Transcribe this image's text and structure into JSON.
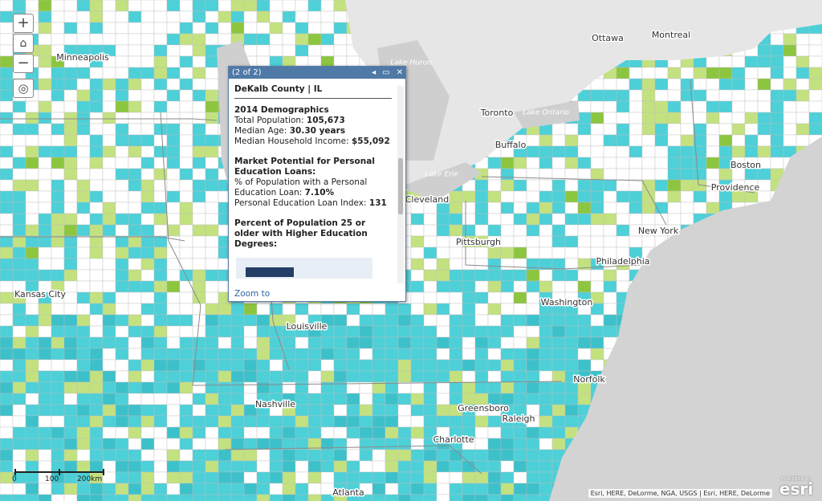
{
  "map_controls": {
    "zoom_in": "+",
    "zoom_out": "−"
  },
  "place_labels": [
    "Minneapolis",
    "Ottawa",
    "Montreal",
    "Toronto",
    "Buffalo",
    "Boston",
    "Providence",
    "New York",
    "Philadelphia",
    "Pittsburgh",
    "Cleveland",
    "Washington",
    "Kansas City",
    "Louisville",
    "Norfolk",
    "Nashville",
    "Greensboro",
    "Raleigh",
    "Charlotte",
    "Atlanta"
  ],
  "water_labels": [
    "Lake Huron",
    "Lake Ontario",
    "Lake Erie"
  ],
  "popup": {
    "counter": "(2 of 2)",
    "title": "DeKalb County | IL",
    "demographics": {
      "heading": "2014 Demographics",
      "rows": [
        {
          "label": "Total Population:",
          "value": "105,673"
        },
        {
          "label": "Median Age:",
          "value": "30.30 years"
        },
        {
          "label": "Median Household Income:",
          "value": "$55,092"
        }
      ]
    },
    "market": {
      "heading": "Market Potential for Personal Education Loans:",
      "rows": [
        {
          "label": "% of Population with a Personal Education Loan:",
          "value": "7.10%"
        },
        {
          "label": "Personal Education Loan Index:",
          "value": "131"
        }
      ]
    },
    "education": {
      "heading": "Percent of Population 25 or older with Higher Education Degrees:"
    },
    "zoom_link": "Zoom to"
  },
  "scale_bar": {
    "ticks": [
      "0",
      "100",
      "200km"
    ]
  },
  "attribution": "Esri, HERE, DeLorme, NGA, USGS | Esri, HERE, DeLorme",
  "logo": {
    "tagline": "POWERED BY",
    "brand": "esri"
  }
}
